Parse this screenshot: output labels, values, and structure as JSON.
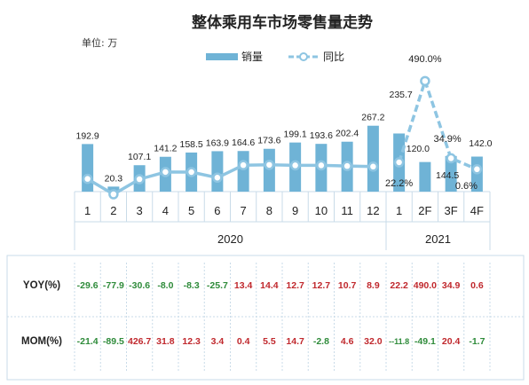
{
  "title": "整体乘用车市场零售量走势",
  "unit_label": "单位: 万",
  "legend": {
    "bar": "销量",
    "line": "同比"
  },
  "colors": {
    "bar": "#6fb3d6",
    "line": "#8ec5e2",
    "neg": "#2e8b3a",
    "pos": "#c0282d",
    "grid": "#c9dbe8"
  },
  "chart_data": {
    "type": "bar",
    "categories": [
      "1",
      "2",
      "3",
      "4",
      "5",
      "6",
      "7",
      "8",
      "9",
      "10",
      "11",
      "12",
      "1",
      "2F",
      "3F",
      "4F"
    ],
    "years": [
      {
        "label": "2020",
        "from": 0,
        "to": 11
      },
      {
        "label": "2021",
        "from": 12,
        "to": 15
      }
    ],
    "series": [
      {
        "name": "销量",
        "type": "bar",
        "values": [
          192.9,
          20.3,
          107.1,
          141.2,
          158.5,
          163.9,
          164.6,
          173.6,
          199.1,
          193.6,
          202.4,
          267.2,
          235.7,
          120.0,
          144.5,
          142.0
        ],
        "labels": [
          "192.9",
          "20.3",
          "107.1",
          "141.2",
          "158.5",
          "163.9",
          "164.6",
          "173.6",
          "199.1",
          "193.6",
          "202.4",
          "267.2",
          "235.7",
          "120.0",
          "144.5",
          "142.0"
        ]
      },
      {
        "name": "同比",
        "type": "line",
        "values": [
          -29.6,
          -77.9,
          -30.6,
          -8.0,
          -8.3,
          -25.7,
          13.4,
          14.4,
          12.7,
          12.7,
          10.7,
          8.9,
          22.2,
          490.0,
          34.9,
          0.6
        ],
        "labels": [
          "",
          "",
          "",
          "",
          "",
          "",
          "",
          "",
          "",
          "",
          "",
          "",
          "22.2%",
          "490.0%",
          "34.9%",
          "0.6%"
        ]
      }
    ],
    "table": {
      "rows": [
        {
          "label": "YOY(%)",
          "values": [
            "-29.6",
            "-77.9",
            "-30.6",
            "-8.0",
            "-8.3",
            "-25.7",
            "13.4",
            "14.4",
            "12.7",
            "12.7",
            "10.7",
            "8.9",
            "22.2",
            "490.0",
            "34.9",
            "0.6"
          ]
        },
        {
          "label": "MOM(%)",
          "values": [
            "-21.4",
            "-89.5",
            "426.7",
            "31.8",
            "12.3",
            "3.4",
            "0.4",
            "5.5",
            "14.7",
            "-2.8",
            "4.6",
            "32.0",
            "--11.8",
            "-49.1",
            "20.4",
            "-1.7"
          ]
        }
      ]
    }
  }
}
